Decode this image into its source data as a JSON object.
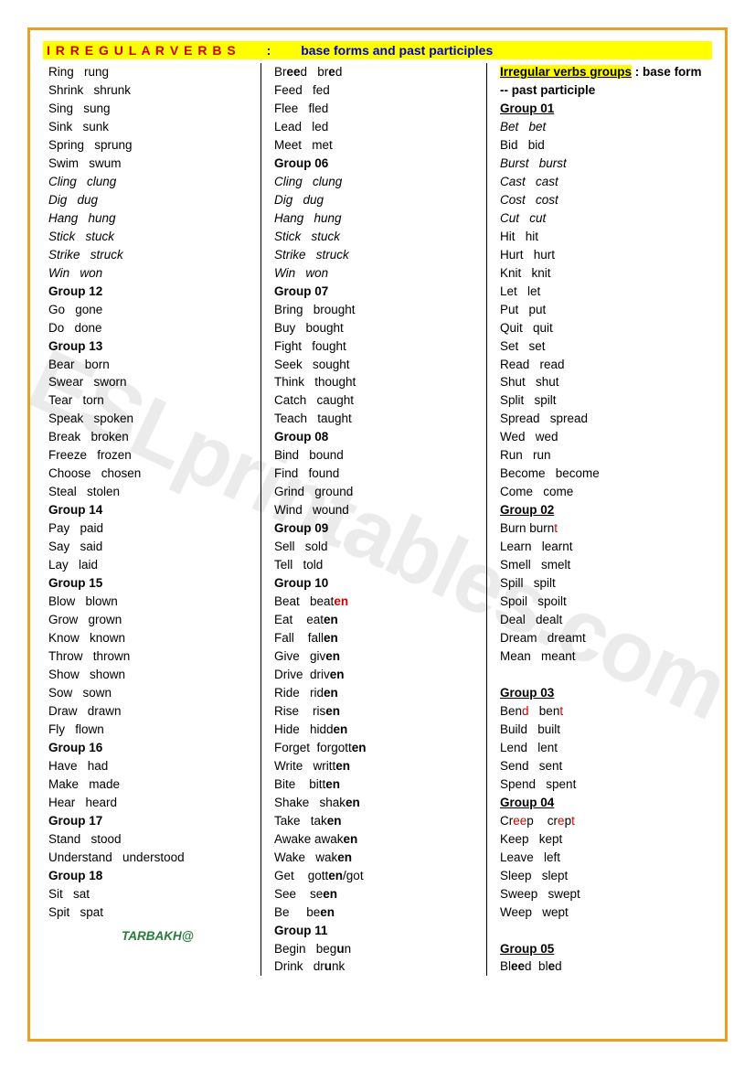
{
  "title": {
    "main": "I R R E G U L A R    V E R B S",
    "sep": ":",
    "sub": "base forms   and past participles"
  },
  "signature": "TARBAKH@",
  "colors": {
    "border": "#e8a020",
    "highlight": "#ffff00",
    "red": "#d00000",
    "blue": "#0000cc",
    "text": "#000000",
    "signature": "#2a7a3a"
  },
  "col1": [
    {
      "t": "v",
      "base": "Ring",
      "pp": "rung"
    },
    {
      "t": "v",
      "base": "Shrink",
      "pp": "shrunk"
    },
    {
      "t": "v",
      "base": "Sing",
      "pp": "sung"
    },
    {
      "t": "v",
      "base": "Sink",
      "pp": "sunk"
    },
    {
      "t": "v",
      "base": "Spring",
      "pp": "sprung"
    },
    {
      "t": "v",
      "base": "Swim",
      "pp": "swum"
    },
    {
      "t": "vi",
      "base": "Cling",
      "pp": "clung"
    },
    {
      "t": "vi",
      "base": "Dig",
      "pp": "dug"
    },
    {
      "t": "vi",
      "base": "Hang",
      "pp": "hung"
    },
    {
      "t": "vi",
      "base": "Stick",
      "pp": "stuck"
    },
    {
      "t": "vi",
      "base": "Strike",
      "pp": "struck"
    },
    {
      "t": "vi",
      "base": "Win",
      "pp": "won"
    },
    {
      "t": "g",
      "label": "Group 12"
    },
    {
      "t": "v",
      "base": "Go",
      "pp": "gone"
    },
    {
      "t": "v",
      "base": "Do",
      "pp": "done"
    },
    {
      "t": "g",
      "label": "Group 13"
    },
    {
      "t": "v",
      "base": "Bear",
      "pp": "born"
    },
    {
      "t": "v",
      "base": "Swear",
      "pp": "sworn"
    },
    {
      "t": "v",
      "base": "Tear",
      "pp": "torn"
    },
    {
      "t": "v",
      "base": "Speak",
      "pp": "spoken"
    },
    {
      "t": "v",
      "base": "Break",
      "pp": "broken"
    },
    {
      "t": "v",
      "base": "Freeze",
      "pp": "frozen"
    },
    {
      "t": "v",
      "base": "Choose",
      "pp": "chosen"
    },
    {
      "t": "v",
      "base": "Steal",
      "pp": "stolen"
    },
    {
      "t": "g",
      "label": "Group 14"
    },
    {
      "t": "v",
      "base": "Pay",
      "pp": "paid"
    },
    {
      "t": "v",
      "base": "Say",
      "pp": "said"
    },
    {
      "t": "v",
      "base": "Lay",
      "pp": "laid"
    },
    {
      "t": "g",
      "label": "Group 15"
    },
    {
      "t": "v",
      "base": "Blow",
      "pp": "blown"
    },
    {
      "t": "v",
      "base": "Grow",
      "pp": "grown"
    },
    {
      "t": "v",
      "base": "Know",
      "pp": "known"
    },
    {
      "t": "v",
      "base": "Throw",
      "pp": "thrown"
    },
    {
      "t": "v",
      "base": "Show",
      "pp": "shown"
    },
    {
      "t": "v",
      "base": "Sow",
      "pp": "sown"
    },
    {
      "t": "v",
      "base": "Draw",
      "pp": "drawn"
    },
    {
      "t": "v",
      "base": "Fly",
      "pp": "flown"
    },
    {
      "t": "g",
      "label": "Group 16"
    },
    {
      "t": "v",
      "base": "Have",
      "pp": "had"
    },
    {
      "t": "v",
      "base": "Make",
      "pp": "made"
    },
    {
      "t": "v",
      "base": "Hear",
      "pp": "heard"
    },
    {
      "t": "g",
      "label": "Group 17"
    },
    {
      "t": "v",
      "base": "Stand",
      "pp": "stood"
    },
    {
      "t": "v",
      "base": "Understand",
      "pp": "understood"
    },
    {
      "t": "g",
      "label": "Group 18"
    },
    {
      "t": "v",
      "base": "Sit",
      "pp": "sat"
    },
    {
      "t": "v",
      "base": "Spit",
      "pp": "spat"
    }
  ],
  "col2": [
    {
      "t": "vh",
      "parts": [
        {
          "s": "Br"
        },
        {
          "s": "ee",
          "b": 1
        },
        {
          "s": "d   br"
        },
        {
          "s": "e",
          "b": 1
        },
        {
          "s": "d"
        }
      ]
    },
    {
      "t": "v",
      "base": "Feed",
      "pp": "fed"
    },
    {
      "t": "v",
      "base": "Flee",
      "pp": "fled"
    },
    {
      "t": "v",
      "base": "Lead",
      "pp": "led"
    },
    {
      "t": "v",
      "base": "Meet",
      "pp": "met"
    },
    {
      "t": "g",
      "label": "Group 06"
    },
    {
      "t": "vi",
      "base": "Cling",
      "pp": "clung"
    },
    {
      "t": "vi",
      "base": "Dig",
      "pp": "dug"
    },
    {
      "t": "vi",
      "base": "Hang",
      "pp": "hung"
    },
    {
      "t": "vi",
      "base": "Stick",
      "pp": "stuck"
    },
    {
      "t": "vi",
      "base": "Strike",
      "pp": "struck"
    },
    {
      "t": "vi",
      "base": "Win",
      "pp": "won"
    },
    {
      "t": "g",
      "label": "Group 07"
    },
    {
      "t": "v",
      "base": "Bring",
      "pp": "brought"
    },
    {
      "t": "v",
      "base": "Buy",
      "pp": "bought"
    },
    {
      "t": "v",
      "base": "Fight",
      "pp": "fought"
    },
    {
      "t": "v",
      "base": "Seek",
      "pp": "sought"
    },
    {
      "t": "v",
      "base": "Think",
      "pp": "thought"
    },
    {
      "t": "v",
      "base": "Catch",
      "pp": "caught"
    },
    {
      "t": "v",
      "base": "Teach",
      "pp": "taught"
    },
    {
      "t": "g",
      "label": "Group 08"
    },
    {
      "t": "v",
      "base": "Bind",
      "pp": "bound"
    },
    {
      "t": "v",
      "base": "Find",
      "pp": "found"
    },
    {
      "t": "v",
      "base": "Grind",
      "pp": "ground"
    },
    {
      "t": "v",
      "base": "Wind",
      "pp": "wound"
    },
    {
      "t": "g",
      "label": "Group 09"
    },
    {
      "t": "v",
      "base": "Sell",
      "pp": "sold"
    },
    {
      "t": "v",
      "base": "Tell",
      "pp": "told"
    },
    {
      "t": "g",
      "label": "Group 10"
    },
    {
      "t": "vh",
      "parts": [
        {
          "s": "Beat   beat"
        },
        {
          "s": "en",
          "b": 1,
          "r": 1
        }
      ]
    },
    {
      "t": "vh",
      "parts": [
        {
          "s": "Eat    eat"
        },
        {
          "s": "en",
          "b": 1
        }
      ]
    },
    {
      "t": "vh",
      "parts": [
        {
          "s": "Fall    fall"
        },
        {
          "s": "en",
          "b": 1
        }
      ]
    },
    {
      "t": "vh",
      "parts": [
        {
          "s": "Give   giv"
        },
        {
          "s": "en",
          "b": 1
        }
      ]
    },
    {
      "t": "vh",
      "parts": [
        {
          "s": "Drive  driv"
        },
        {
          "s": "en",
          "b": 1
        }
      ]
    },
    {
      "t": "vh",
      "parts": [
        {
          "s": "Ride   rid"
        },
        {
          "s": "en",
          "b": 1
        }
      ]
    },
    {
      "t": "vh",
      "parts": [
        {
          "s": "Rise    ris"
        },
        {
          "s": "en",
          "b": 1
        }
      ]
    },
    {
      "t": "vh",
      "parts": [
        {
          "s": "Hide   hidd"
        },
        {
          "s": "en",
          "b": 1
        }
      ]
    },
    {
      "t": "vh",
      "parts": [
        {
          "s": "Forget  forgott"
        },
        {
          "s": "en",
          "b": 1
        }
      ]
    },
    {
      "t": "vh",
      "parts": [
        {
          "s": "Write   writt"
        },
        {
          "s": "en",
          "b": 1
        }
      ]
    },
    {
      "t": "vh",
      "parts": [
        {
          "s": "Bite    bitt"
        },
        {
          "s": "en",
          "b": 1
        }
      ]
    },
    {
      "t": "vh",
      "parts": [
        {
          "s": "Shake   shak"
        },
        {
          "s": "en",
          "b": 1
        }
      ]
    },
    {
      "t": "vh",
      "parts": [
        {
          "s": "Take   tak"
        },
        {
          "s": "en",
          "b": 1
        }
      ]
    },
    {
      "t": "vh",
      "parts": [
        {
          "s": "Awake awak"
        },
        {
          "s": "en",
          "b": 1
        }
      ]
    },
    {
      "t": "vh",
      "parts": [
        {
          "s": "Wake   wak"
        },
        {
          "s": "en",
          "b": 1
        }
      ]
    },
    {
      "t": "vh",
      "parts": [
        {
          "s": "Get    gott"
        },
        {
          "s": "en",
          "b": 1
        },
        {
          "s": "/got"
        }
      ]
    },
    {
      "t": "vh",
      "parts": [
        {
          "s": "See    se"
        },
        {
          "s": "en",
          "b": 1
        }
      ]
    },
    {
      "t": "vh",
      "parts": [
        {
          "s": "Be     be"
        },
        {
          "s": "en",
          "b": 1
        }
      ]
    },
    {
      "t": "g",
      "label": "Group 11"
    },
    {
      "t": "vh",
      "parts": [
        {
          "s": "Begin   beg"
        },
        {
          "s": "u",
          "b": 1
        },
        {
          "s": "n"
        }
      ]
    },
    {
      "t": "vh",
      "parts": [
        {
          "s": "Drink   dr"
        },
        {
          "s": "u",
          "b": 1
        },
        {
          "s": "nk"
        }
      ]
    }
  ],
  "col3": {
    "header1": "Irregular verbs groups",
    "header2": " : base form --  past participle",
    "groups": [
      {
        "label": "Group 01",
        "u": 1,
        "items": [
          {
            "t": "vi",
            "base": "Bet",
            "pp": "bet"
          },
          {
            "t": "v",
            "base": "Bid",
            "pp": "bid"
          },
          {
            "t": "vi",
            "base": "Burst",
            "pp": "burst"
          },
          {
            "t": "vi",
            "base": "Cast",
            "pp": "cast"
          },
          {
            "t": "vi",
            "base": "Cost",
            "pp": "cost"
          },
          {
            "t": "vi",
            "base": "Cut",
            "pp": "cut"
          },
          {
            "t": "v",
            "base": "Hit",
            "pp": "hit"
          },
          {
            "t": "v",
            "base": "Hurt",
            "pp": "hurt"
          },
          {
            "t": "v",
            "base": "Knit",
            "pp": "knit"
          },
          {
            "t": "v",
            "base": "Let",
            "pp": "let"
          },
          {
            "t": "v",
            "base": "Put",
            "pp": "put"
          },
          {
            "t": "v",
            "base": "Quit",
            "pp": "quit"
          },
          {
            "t": "v",
            "base": "Set",
            "pp": "set"
          },
          {
            "t": "v",
            "base": "Read",
            "pp": "read"
          },
          {
            "t": "v",
            "base": "Shut",
            "pp": "shut"
          },
          {
            "t": "v",
            "base": "Split",
            "pp": "spilt"
          },
          {
            "t": "v",
            "base": "Spread",
            "pp": "spread"
          },
          {
            "t": "v",
            "base": "Wed",
            "pp": "wed"
          },
          {
            "t": "v",
            "base": "Run",
            "pp": "run"
          },
          {
            "t": "v",
            "base": "Become",
            "pp": "become"
          },
          {
            "t": "v",
            "base": "Come",
            "pp": "come"
          }
        ]
      },
      {
        "label": "Group 02",
        "u": 1,
        "items": [
          {
            "t": "vh",
            "parts": [
              {
                "s": "Burn burn"
              },
              {
                "s": "t",
                "r": 1
              }
            ]
          },
          {
            "t": "v",
            "base": "Learn",
            "pp": "learnt"
          },
          {
            "t": "v",
            "base": "Smell",
            "pp": "smelt"
          },
          {
            "t": "v",
            "base": "Spill",
            "pp": "spilt"
          },
          {
            "t": "v",
            "base": "Spoil",
            "pp": "spoilt"
          },
          {
            "t": "v",
            "base": "Deal",
            "pp": "dealt"
          },
          {
            "t": "v",
            "base": "Dream",
            "pp": "dreamt"
          },
          {
            "t": "v",
            "base": "Mean",
            "pp": "meant"
          }
        ]
      },
      {
        "label": "",
        "blank": 1
      },
      {
        "label": "Group 03",
        "u": 1,
        "items": [
          {
            "t": "vh",
            "parts": [
              {
                "s": "Ben"
              },
              {
                "s": "d",
                "r": 1
              },
              {
                "s": "   ben"
              },
              {
                "s": "t",
                "r": 1
              }
            ]
          },
          {
            "t": "v",
            "base": "Build",
            "pp": "built"
          },
          {
            "t": "v",
            "base": "Lend",
            "pp": "lent"
          },
          {
            "t": "v",
            "base": "Send",
            "pp": "sent"
          },
          {
            "t": "v",
            "base": "Spend",
            "pp": "spent"
          }
        ]
      },
      {
        "label": "Group 04",
        "u": 1,
        "items": [
          {
            "t": "vh",
            "parts": [
              {
                "s": "Cr"
              },
              {
                "s": "ee",
                "r": 1
              },
              {
                "s": "p    cr"
              },
              {
                "s": "e",
                "r": 1
              },
              {
                "s": "p"
              },
              {
                "s": "t",
                "r": 1
              }
            ]
          },
          {
            "t": "v",
            "base": "Keep",
            "pp": "kept"
          },
          {
            "t": "v",
            "base": "Leave",
            "pp": "left"
          },
          {
            "t": "v",
            "base": "Sleep",
            "pp": "slept"
          },
          {
            "t": "v",
            "base": "Sweep",
            "pp": "swept"
          },
          {
            "t": "v",
            "base": "Weep",
            "pp": "wept"
          }
        ]
      },
      {
        "label": "",
        "blank": 1
      },
      {
        "label": "Group 05",
        "u": 1,
        "items": [
          {
            "t": "vh",
            "parts": [
              {
                "s": "Bl"
              },
              {
                "s": "ee",
                "b": 1
              },
              {
                "s": "d  bl"
              },
              {
                "s": "e",
                "b": 1
              },
              {
                "s": "d"
              }
            ]
          }
        ]
      }
    ]
  }
}
